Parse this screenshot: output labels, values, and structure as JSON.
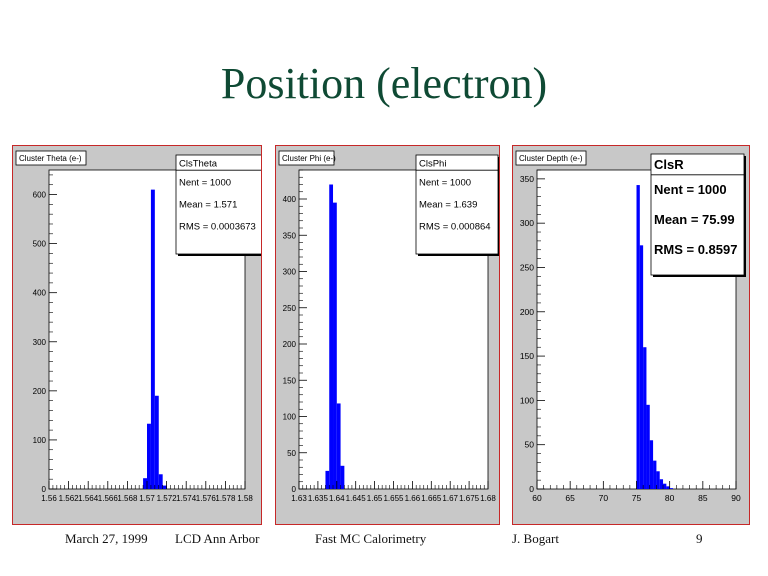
{
  "slide": {
    "title": "Position (electron)"
  },
  "footer": {
    "date": "March 27, 1999",
    "venue": "LCD Ann Arbor",
    "topic": "Fast MC Calorimetry",
    "author": "J. Bogart",
    "page": "9"
  },
  "colors": {
    "title": "#0f4a34",
    "bars": "#0000ff",
    "panel_border": "#c62828",
    "panel_bg": "#c8c8c8"
  },
  "chart_data": [
    {
      "type": "bar",
      "title": "Cluster Theta (e-)",
      "stats": {
        "name": "ClsTheta",
        "nent": "Nent = 1000",
        "mean": "Mean =  1.571",
        "rms": "RMS   = 0.0003673"
      },
      "xlim": [
        1.56,
        1.58
      ],
      "ylim": [
        0,
        650
      ],
      "xtick_labels": [
        "1.56",
        "1.562",
        "1.564",
        "1.566",
        "1.568",
        "1.57",
        "1.572",
        "1.574",
        "1.576",
        "1.578",
        "1.58"
      ],
      "ytick_labels": [
        "0",
        "100",
        "200",
        "300",
        "400",
        "500",
        "600"
      ],
      "bin_width": 0.0004,
      "x": [
        1.5696,
        1.57,
        1.5704,
        1.5708,
        1.5712,
        1.5716
      ],
      "values": [
        22,
        133,
        610,
        190,
        30,
        7
      ]
    },
    {
      "type": "bar",
      "title": "Cluster Phi (e-)",
      "stats": {
        "name": "ClsPhi",
        "nent": "Nent = 1000",
        "mean": "Mean =  1.639",
        "rms": "RMS   = 0.000864"
      },
      "xlim": [
        1.63,
        1.68
      ],
      "ylim": [
        0,
        440
      ],
      "xtick_labels": [
        "1.63",
        "1.635",
        "1.64",
        "1.645",
        "1.65",
        "1.655",
        "1.66",
        "1.665",
        "1.67",
        "1.675",
        "1.68"
      ],
      "ytick_labels": [
        "0",
        "50",
        "100",
        "150",
        "200",
        "250",
        "300",
        "350",
        "400"
      ],
      "bin_width": 0.001,
      "x": [
        1.637,
        1.638,
        1.639,
        1.64,
        1.641
      ],
      "values": [
        25,
        420,
        395,
        118,
        32
      ]
    },
    {
      "type": "bar",
      "title": "Cluster Depth (e-)",
      "stats": {
        "name": "ClsR",
        "nent": "Nent = 1000",
        "mean": "Mean =  75.99",
        "rms": "RMS   = 0.8597"
      },
      "xlim": [
        60,
        90
      ],
      "ylim": [
        0,
        360
      ],
      "xtick_labels": [
        "60",
        "65",
        "70",
        "75",
        "80",
        "85",
        "90"
      ],
      "ytick_labels": [
        "0",
        "50",
        "100",
        "150",
        "200",
        "250",
        "300",
        "350"
      ],
      "bin_width": 0.5,
      "x": [
        75,
        75.5,
        76,
        76.5,
        77,
        77.5,
        78,
        78.5,
        79,
        79.5,
        80
      ],
      "values": [
        343,
        275,
        160,
        95,
        55,
        32,
        20,
        11,
        6,
        3,
        1
      ]
    }
  ]
}
